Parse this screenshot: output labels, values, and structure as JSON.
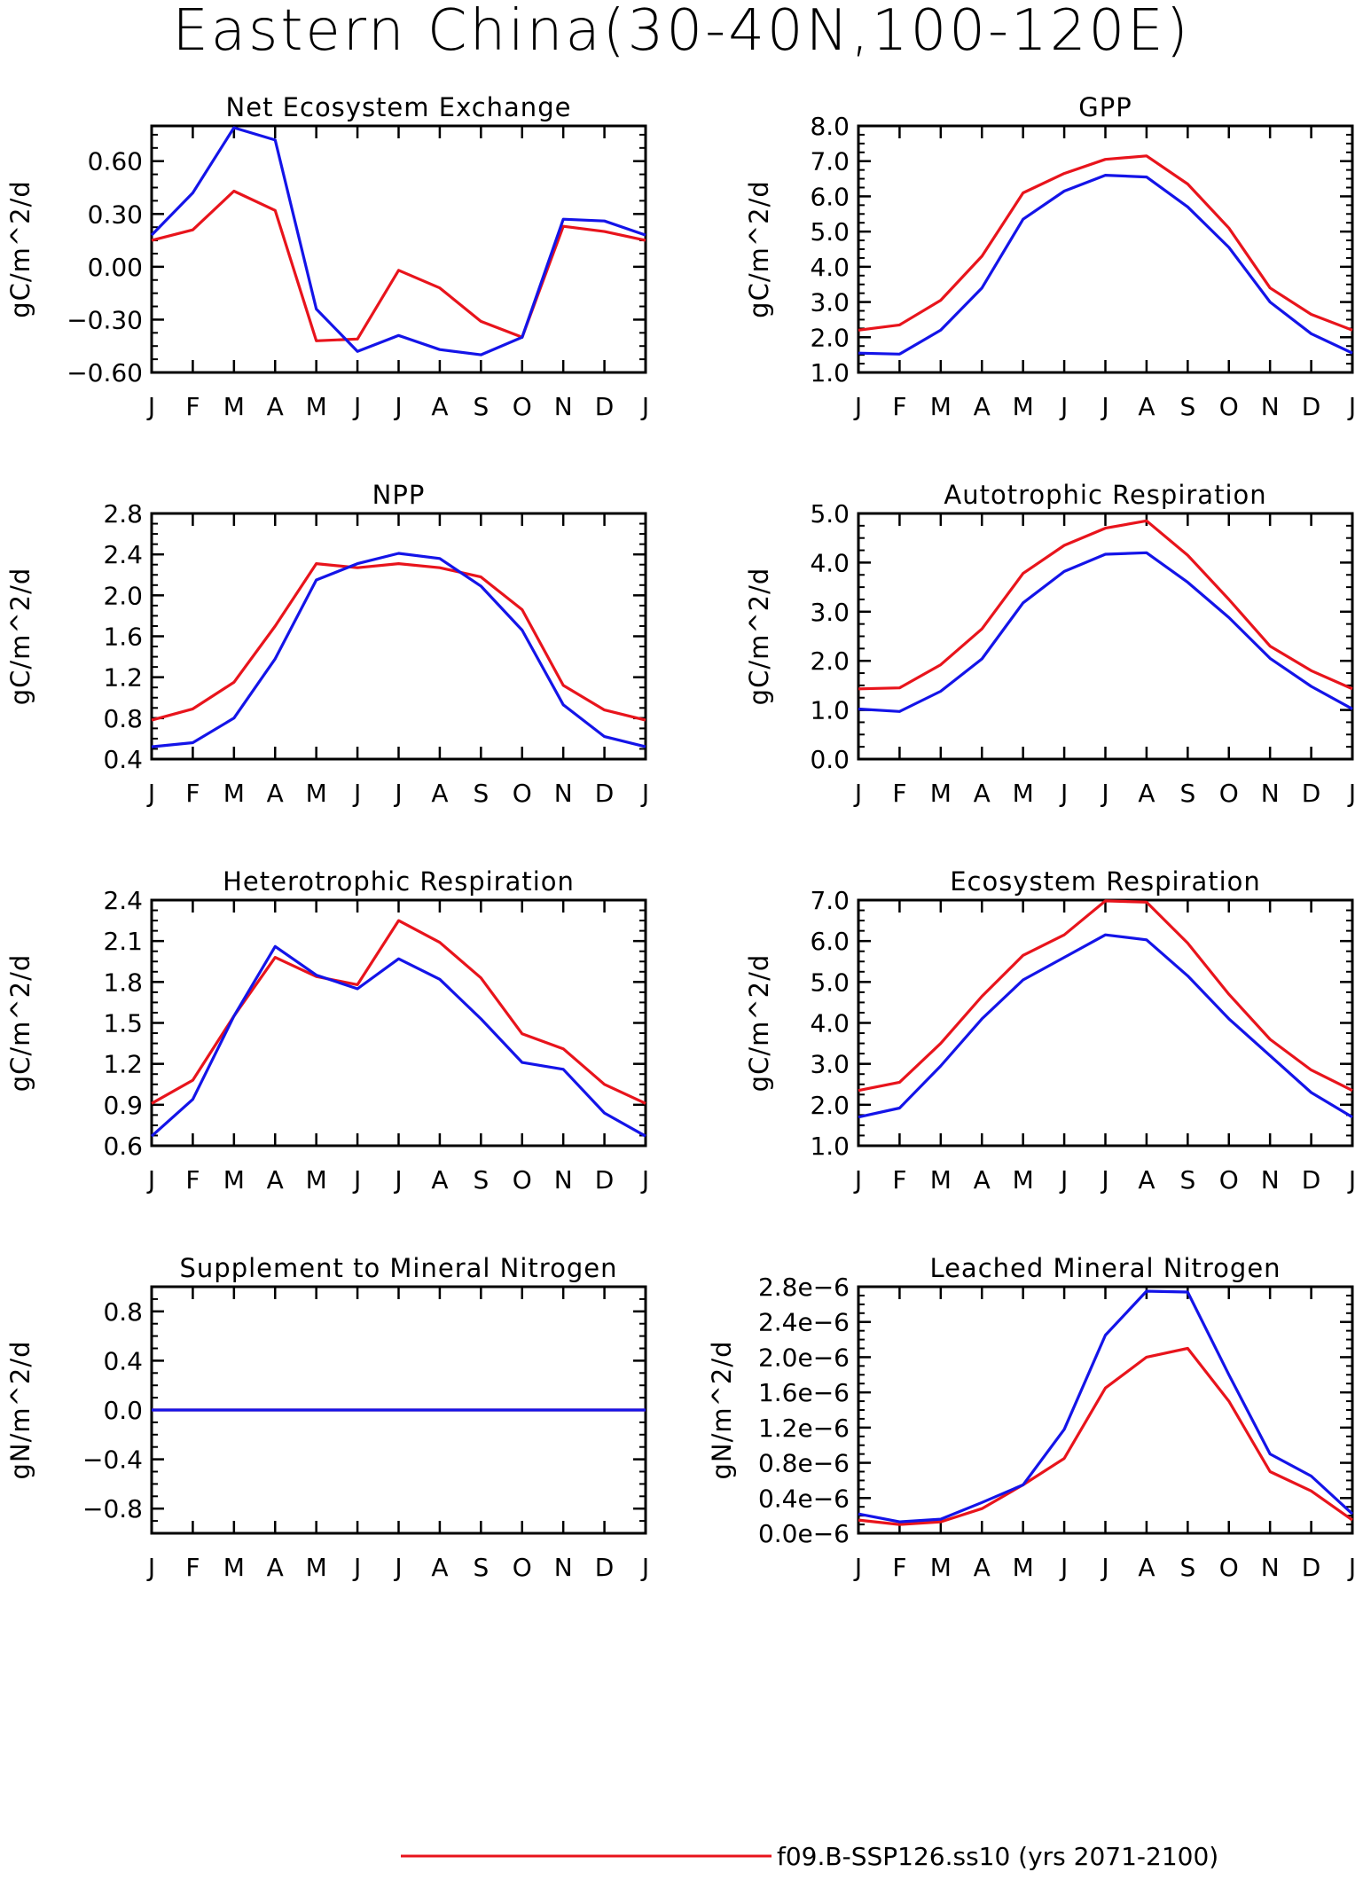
{
  "title": "Eastern China(30-40N,100-120E)",
  "months": [
    "J",
    "F",
    "M",
    "A",
    "M",
    "J",
    "J",
    "A",
    "S",
    "O",
    "N",
    "D",
    "J"
  ],
  "colors": {
    "red": "#e8141c",
    "blue": "#1414e8"
  },
  "legend": [
    {
      "label": "f09.B-SSP126.ss10 (yrs 2071-2100)",
      "color": "#e8141c"
    }
  ],
  "chart_data": [
    {
      "type": "line",
      "title": "Net Ecosystem Exchange",
      "ylabel": "gC/m^2/d",
      "ylim": [
        -0.6,
        0.8
      ],
      "yticks": [
        -0.6,
        -0.3,
        0.0,
        0.3,
        0.6
      ],
      "ytick_labels": [
        "−0.60",
        "−0.30",
        "0.00",
        "0.30",
        "0.60"
      ],
      "x": [
        "J",
        "F",
        "M",
        "A",
        "M",
        "J",
        "J",
        "A",
        "S",
        "O",
        "N",
        "D",
        "J"
      ],
      "series": [
        {
          "color": "red",
          "values": [
            0.15,
            0.21,
            0.43,
            0.32,
            -0.42,
            -0.41,
            -0.02,
            -0.12,
            -0.31,
            -0.4,
            0.23,
            0.2,
            0.15
          ]
        },
        {
          "color": "blue",
          "values": [
            0.18,
            0.42,
            0.79,
            0.72,
            -0.24,
            -0.48,
            -0.39,
            -0.47,
            -0.5,
            -0.4,
            0.27,
            0.26,
            0.18
          ]
        }
      ]
    },
    {
      "type": "line",
      "title": "GPP",
      "ylabel": "gC/m^2/d",
      "ylim": [
        1.0,
        8.0
      ],
      "yticks": [
        1,
        2,
        3,
        4,
        5,
        6,
        7,
        8
      ],
      "ytick_labels": [
        "1.0",
        "2.0",
        "3.0",
        "4.0",
        "5.0",
        "6.0",
        "7.0",
        "8.0"
      ],
      "x": [
        "J",
        "F",
        "M",
        "A",
        "M",
        "J",
        "J",
        "A",
        "S",
        "O",
        "N",
        "D",
        "J"
      ],
      "series": [
        {
          "color": "red",
          "values": [
            2.2,
            2.35,
            3.05,
            4.3,
            6.1,
            6.65,
            7.05,
            7.15,
            6.35,
            5.1,
            3.4,
            2.65,
            2.2
          ]
        },
        {
          "color": "blue",
          "values": [
            1.55,
            1.52,
            2.2,
            3.4,
            5.35,
            6.15,
            6.6,
            6.55,
            5.7,
            4.55,
            3.0,
            2.1,
            1.55
          ]
        }
      ]
    },
    {
      "type": "line",
      "title": "NPP",
      "ylabel": "gC/m^2/d",
      "ylim": [
        0.4,
        2.8
      ],
      "yticks": [
        0.4,
        0.8,
        1.2,
        1.6,
        2.0,
        2.4,
        2.8
      ],
      "ytick_labels": [
        "0.4",
        "0.8",
        "1.2",
        "1.6",
        "2.0",
        "2.4",
        "2.8"
      ],
      "x": [
        "J",
        "F",
        "M",
        "A",
        "M",
        "J",
        "J",
        "A",
        "S",
        "O",
        "N",
        "D",
        "J"
      ],
      "series": [
        {
          "color": "red",
          "values": [
            0.78,
            0.89,
            1.15,
            1.7,
            2.31,
            2.27,
            2.31,
            2.27,
            2.18,
            1.86,
            1.12,
            0.88,
            0.78
          ]
        },
        {
          "color": "blue",
          "values": [
            0.52,
            0.56,
            0.8,
            1.38,
            2.15,
            2.31,
            2.41,
            2.36,
            2.09,
            1.66,
            0.93,
            0.62,
            0.52
          ]
        }
      ]
    },
    {
      "type": "line",
      "title": "Autotrophic Respiration",
      "ylabel": "gC/m^2/d",
      "ylim": [
        0.0,
        5.0
      ],
      "yticks": [
        0,
        1,
        2,
        3,
        4,
        5
      ],
      "ytick_labels": [
        "0.0",
        "1.0",
        "2.0",
        "3.0",
        "4.0",
        "5.0"
      ],
      "x": [
        "J",
        "F",
        "M",
        "A",
        "M",
        "J",
        "J",
        "A",
        "S",
        "O",
        "N",
        "D",
        "J"
      ],
      "series": [
        {
          "color": "red",
          "values": [
            1.43,
            1.45,
            1.92,
            2.65,
            3.78,
            4.35,
            4.7,
            4.85,
            4.15,
            3.25,
            2.3,
            1.8,
            1.43
          ]
        },
        {
          "color": "blue",
          "values": [
            1.02,
            0.97,
            1.38,
            2.04,
            3.18,
            3.82,
            4.17,
            4.2,
            3.6,
            2.88,
            2.05,
            1.48,
            1.02
          ]
        }
      ]
    },
    {
      "type": "line",
      "title": "Heterotrophic Respiration",
      "ylabel": "gC/m^2/d",
      "ylim": [
        0.6,
        2.4
      ],
      "yticks": [
        0.6,
        0.9,
        1.2,
        1.5,
        1.8,
        2.1,
        2.4
      ],
      "ytick_labels": [
        "0.6",
        "0.9",
        "1.2",
        "1.5",
        "1.8",
        "2.1",
        "2.4"
      ],
      "x": [
        "J",
        "F",
        "M",
        "A",
        "M",
        "J",
        "J",
        "A",
        "S",
        "O",
        "N",
        "D",
        "J"
      ],
      "series": [
        {
          "color": "red",
          "values": [
            0.91,
            1.08,
            1.55,
            1.98,
            1.84,
            1.78,
            2.25,
            2.09,
            1.83,
            1.42,
            1.31,
            1.05,
            0.91
          ]
        },
        {
          "color": "blue",
          "values": [
            0.67,
            0.94,
            1.55,
            2.06,
            1.85,
            1.75,
            1.97,
            1.82,
            1.53,
            1.21,
            1.16,
            0.84,
            0.67
          ]
        }
      ]
    },
    {
      "type": "line",
      "title": "Ecosystem Respiration",
      "ylabel": "gC/m^2/d",
      "ylim": [
        1.0,
        7.0
      ],
      "yticks": [
        1,
        2,
        3,
        4,
        5,
        6,
        7
      ],
      "ytick_labels": [
        "1.0",
        "2.0",
        "3.0",
        "4.0",
        "5.0",
        "6.0",
        "7.0"
      ],
      "x": [
        "J",
        "F",
        "M",
        "A",
        "M",
        "J",
        "J",
        "A",
        "S",
        "O",
        "N",
        "D",
        "J"
      ],
      "series": [
        {
          "color": "red",
          "values": [
            2.35,
            2.55,
            3.5,
            4.65,
            5.65,
            6.15,
            6.98,
            6.95,
            5.95,
            4.7,
            3.6,
            2.85,
            2.35
          ]
        },
        {
          "color": "blue",
          "values": [
            1.7,
            1.92,
            2.95,
            4.1,
            5.05,
            5.6,
            6.15,
            6.03,
            5.15,
            4.1,
            3.2,
            2.3,
            1.7
          ]
        }
      ]
    },
    {
      "type": "line",
      "title": "Supplement to Mineral Nitrogen",
      "ylabel": "gN/m^2/d",
      "ylim": [
        -1.0,
        1.0
      ],
      "yticks": [
        -0.8,
        -0.4,
        0.0,
        0.4,
        0.8
      ],
      "ytick_labels": [
        "−0.8",
        "−0.4",
        "0.0",
        "0.4",
        "0.8"
      ],
      "x": [
        "J",
        "F",
        "M",
        "A",
        "M",
        "J",
        "J",
        "A",
        "S",
        "O",
        "N",
        "D",
        "J"
      ],
      "series": [
        {
          "color": "red",
          "values": [
            0,
            0,
            0,
            0,
            0,
            0,
            0,
            0,
            0,
            0,
            0,
            0,
            0
          ]
        },
        {
          "color": "blue",
          "values": [
            0,
            0,
            0,
            0,
            0,
            0,
            0,
            0,
            0,
            0,
            0,
            0,
            0
          ]
        }
      ]
    },
    {
      "type": "line",
      "title": "Leached Mineral Nitrogen",
      "ylabel": "gN/m^2/d",
      "ylim": [
        0.0,
        2.8e-06
      ],
      "yticks": [
        0,
        4e-07,
        8e-07,
        1.2e-06,
        1.6e-06,
        2e-06,
        2.4e-06,
        2.8e-06
      ],
      "ytick_labels": [
        "0.0e−6",
        "0.4e−6",
        "0.8e−6",
        "1.2e−6",
        "1.6e−6",
        "2.0e−6",
        "2.4e−6",
        "2.8e−6"
      ],
      "x": [
        "J",
        "F",
        "M",
        "A",
        "M",
        "J",
        "J",
        "A",
        "S",
        "O",
        "N",
        "D",
        "J"
      ],
      "series": [
        {
          "color": "red",
          "values": [
            1.5e-07,
            1e-07,
            1.3e-07,
            2.8e-07,
            5.5e-07,
            8.5e-07,
            1.65e-06,
            2e-06,
            2.1e-06,
            1.5e-06,
            7e-07,
            4.8e-07,
            1.5e-07
          ]
        },
        {
          "color": "blue",
          "values": [
            2.2e-07,
            1.3e-07,
            1.6e-07,
            3.5e-07,
            5.5e-07,
            1.18e-06,
            2.25e-06,
            2.75e-06,
            2.74e-06,
            1.8e-06,
            9e-07,
            6.5e-07,
            2.2e-07
          ]
        }
      ]
    }
  ]
}
